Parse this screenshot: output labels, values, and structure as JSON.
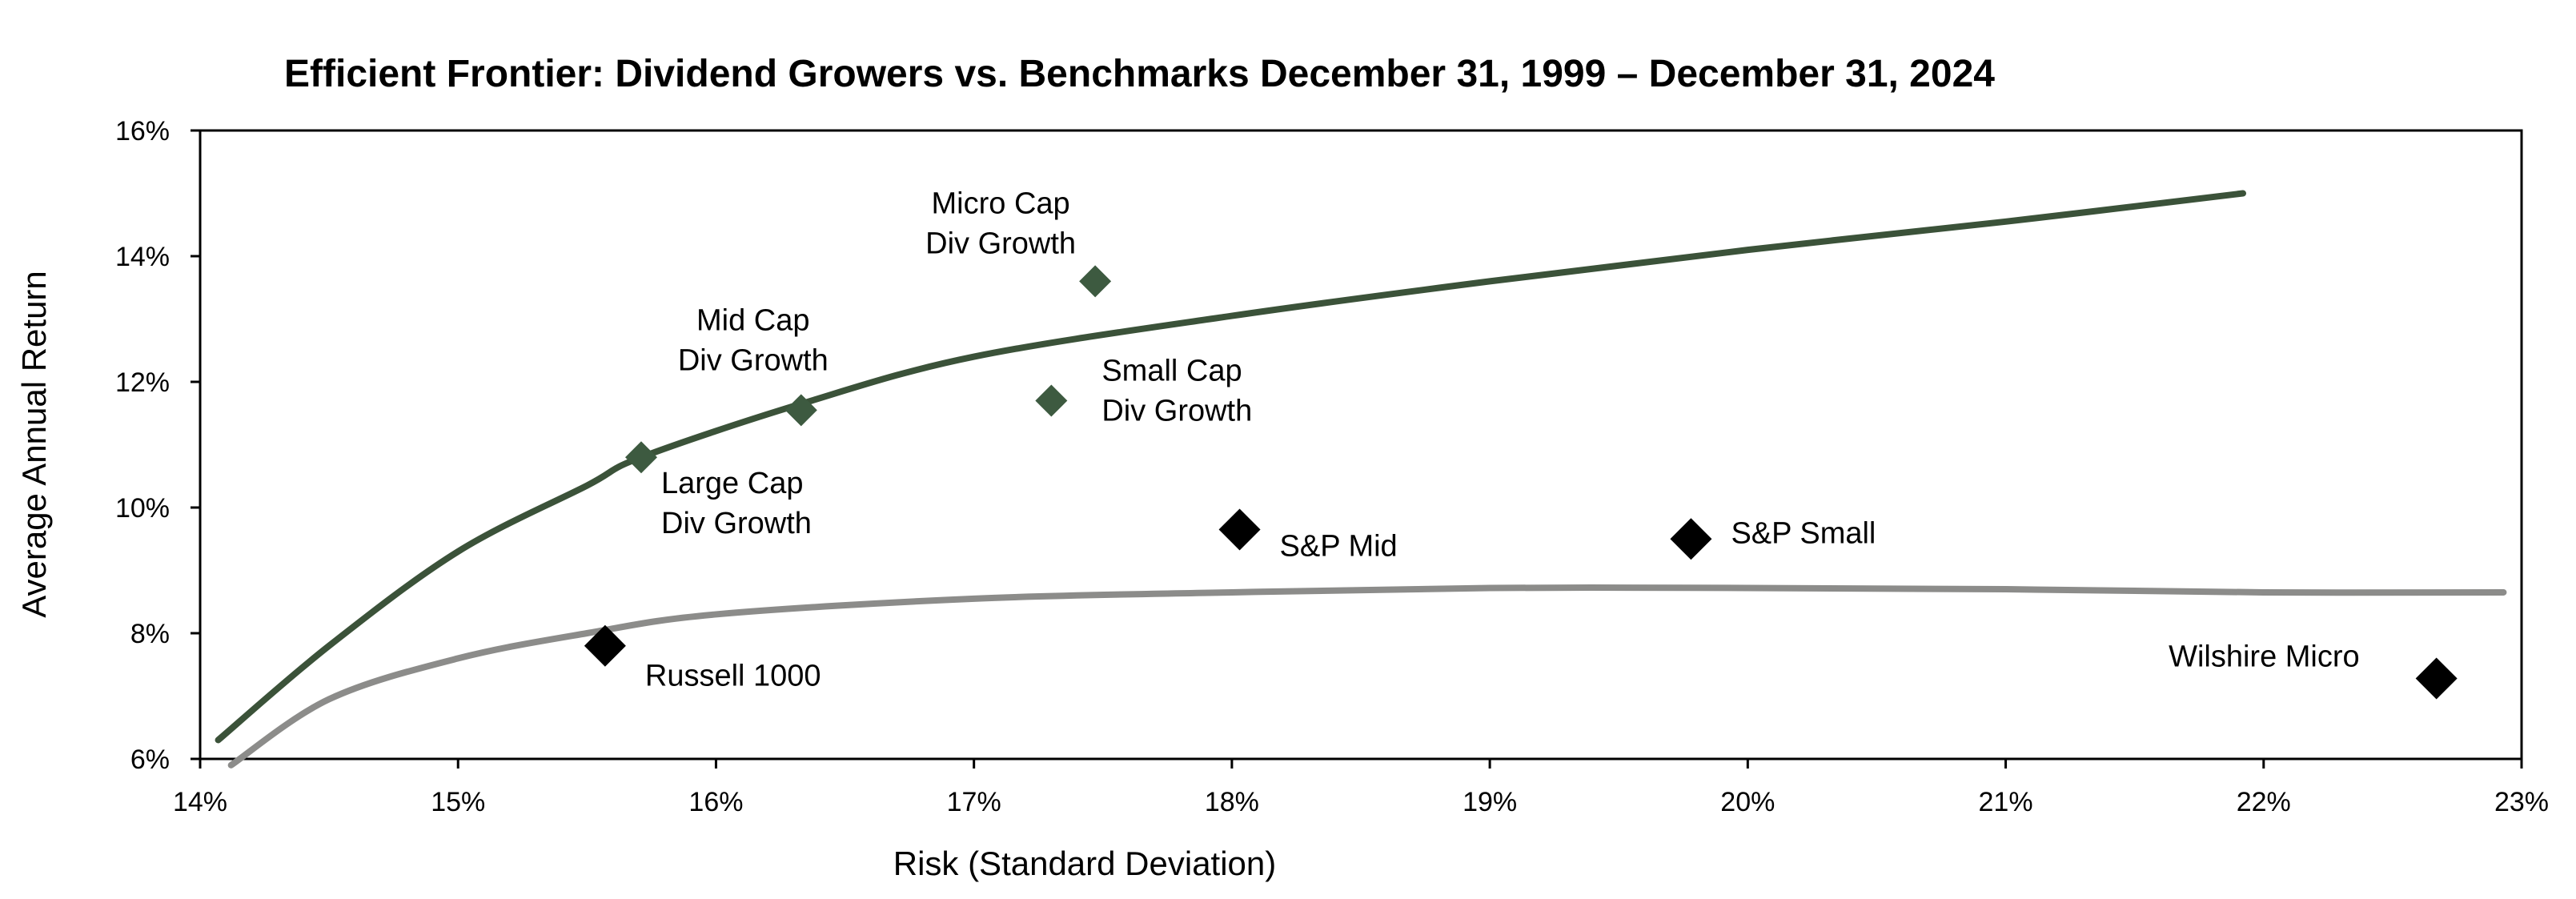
{
  "chart_data": {
    "type": "scatter",
    "title": "Efficient Frontier: Dividend Growers vs. Benchmarks December 31, 1999 – December 31, 2024",
    "xlabel": "Risk (Standard Deviation)",
    "ylabel": "Average Annual Return",
    "xlim": [
      14,
      23
    ],
    "ylim": [
      6,
      16
    ],
    "x_ticks": [
      "14%",
      "15%",
      "16%",
      "17%",
      "18%",
      "19%",
      "20%",
      "21%",
      "22%",
      "23%"
    ],
    "y_ticks": [
      "6%",
      "8%",
      "10%",
      "12%",
      "14%",
      "16%"
    ],
    "grid": false,
    "colors": {
      "div_growth": "#3d5a40",
      "benchmark": "#000000",
      "frontier_div": "#3b5239",
      "frontier_bench": "#8c8c8a"
    },
    "series": [
      {
        "group": "div_growth",
        "points": [
          {
            "label": "Large Cap\nDiv Growth",
            "x": 15.71,
            "y": 10.8
          },
          {
            "label": "Mid Cap\nDiv Growth",
            "x": 16.33,
            "y": 11.55
          },
          {
            "label": "Small Cap\nDiv Growth",
            "x": 17.3,
            "y": 11.7
          },
          {
            "label": "Micro Cap\nDiv Growth",
            "x": 17.47,
            "y": 13.6
          }
        ]
      },
      {
        "group": "benchmark",
        "points": [
          {
            "label": "Russell 1000",
            "x": 15.57,
            "y": 7.8
          },
          {
            "label": "S&P Mid",
            "x": 18.03,
            "y": 9.65
          },
          {
            "label": "S&P Small",
            "x": 19.78,
            "y": 9.5
          },
          {
            "label": "Wilshire Micro",
            "x": 22.67,
            "y": 7.28
          }
        ]
      }
    ],
    "frontiers": [
      {
        "group": "frontier_div",
        "points": [
          [
            14.07,
            6.3
          ],
          [
            14.5,
            7.8
          ],
          [
            15.0,
            9.3
          ],
          [
            15.5,
            10.35
          ],
          [
            15.71,
            10.8
          ],
          [
            16.33,
            11.65
          ],
          [
            17.0,
            12.4
          ],
          [
            18.0,
            13.05
          ],
          [
            19.0,
            13.6
          ],
          [
            20.0,
            14.1
          ],
          [
            21.0,
            14.55
          ],
          [
            21.92,
            15.0
          ]
        ]
      },
      {
        "group": "frontier_bench",
        "points": [
          [
            14.12,
            5.9
          ],
          [
            14.5,
            6.95
          ],
          [
            15.0,
            7.6
          ],
          [
            15.5,
            8.0
          ],
          [
            16.0,
            8.3
          ],
          [
            17.0,
            8.55
          ],
          [
            18.0,
            8.65
          ],
          [
            19.0,
            8.72
          ],
          [
            20.0,
            8.72
          ],
          [
            21.0,
            8.7
          ],
          [
            22.0,
            8.65
          ],
          [
            22.93,
            8.65
          ]
        ]
      }
    ]
  }
}
